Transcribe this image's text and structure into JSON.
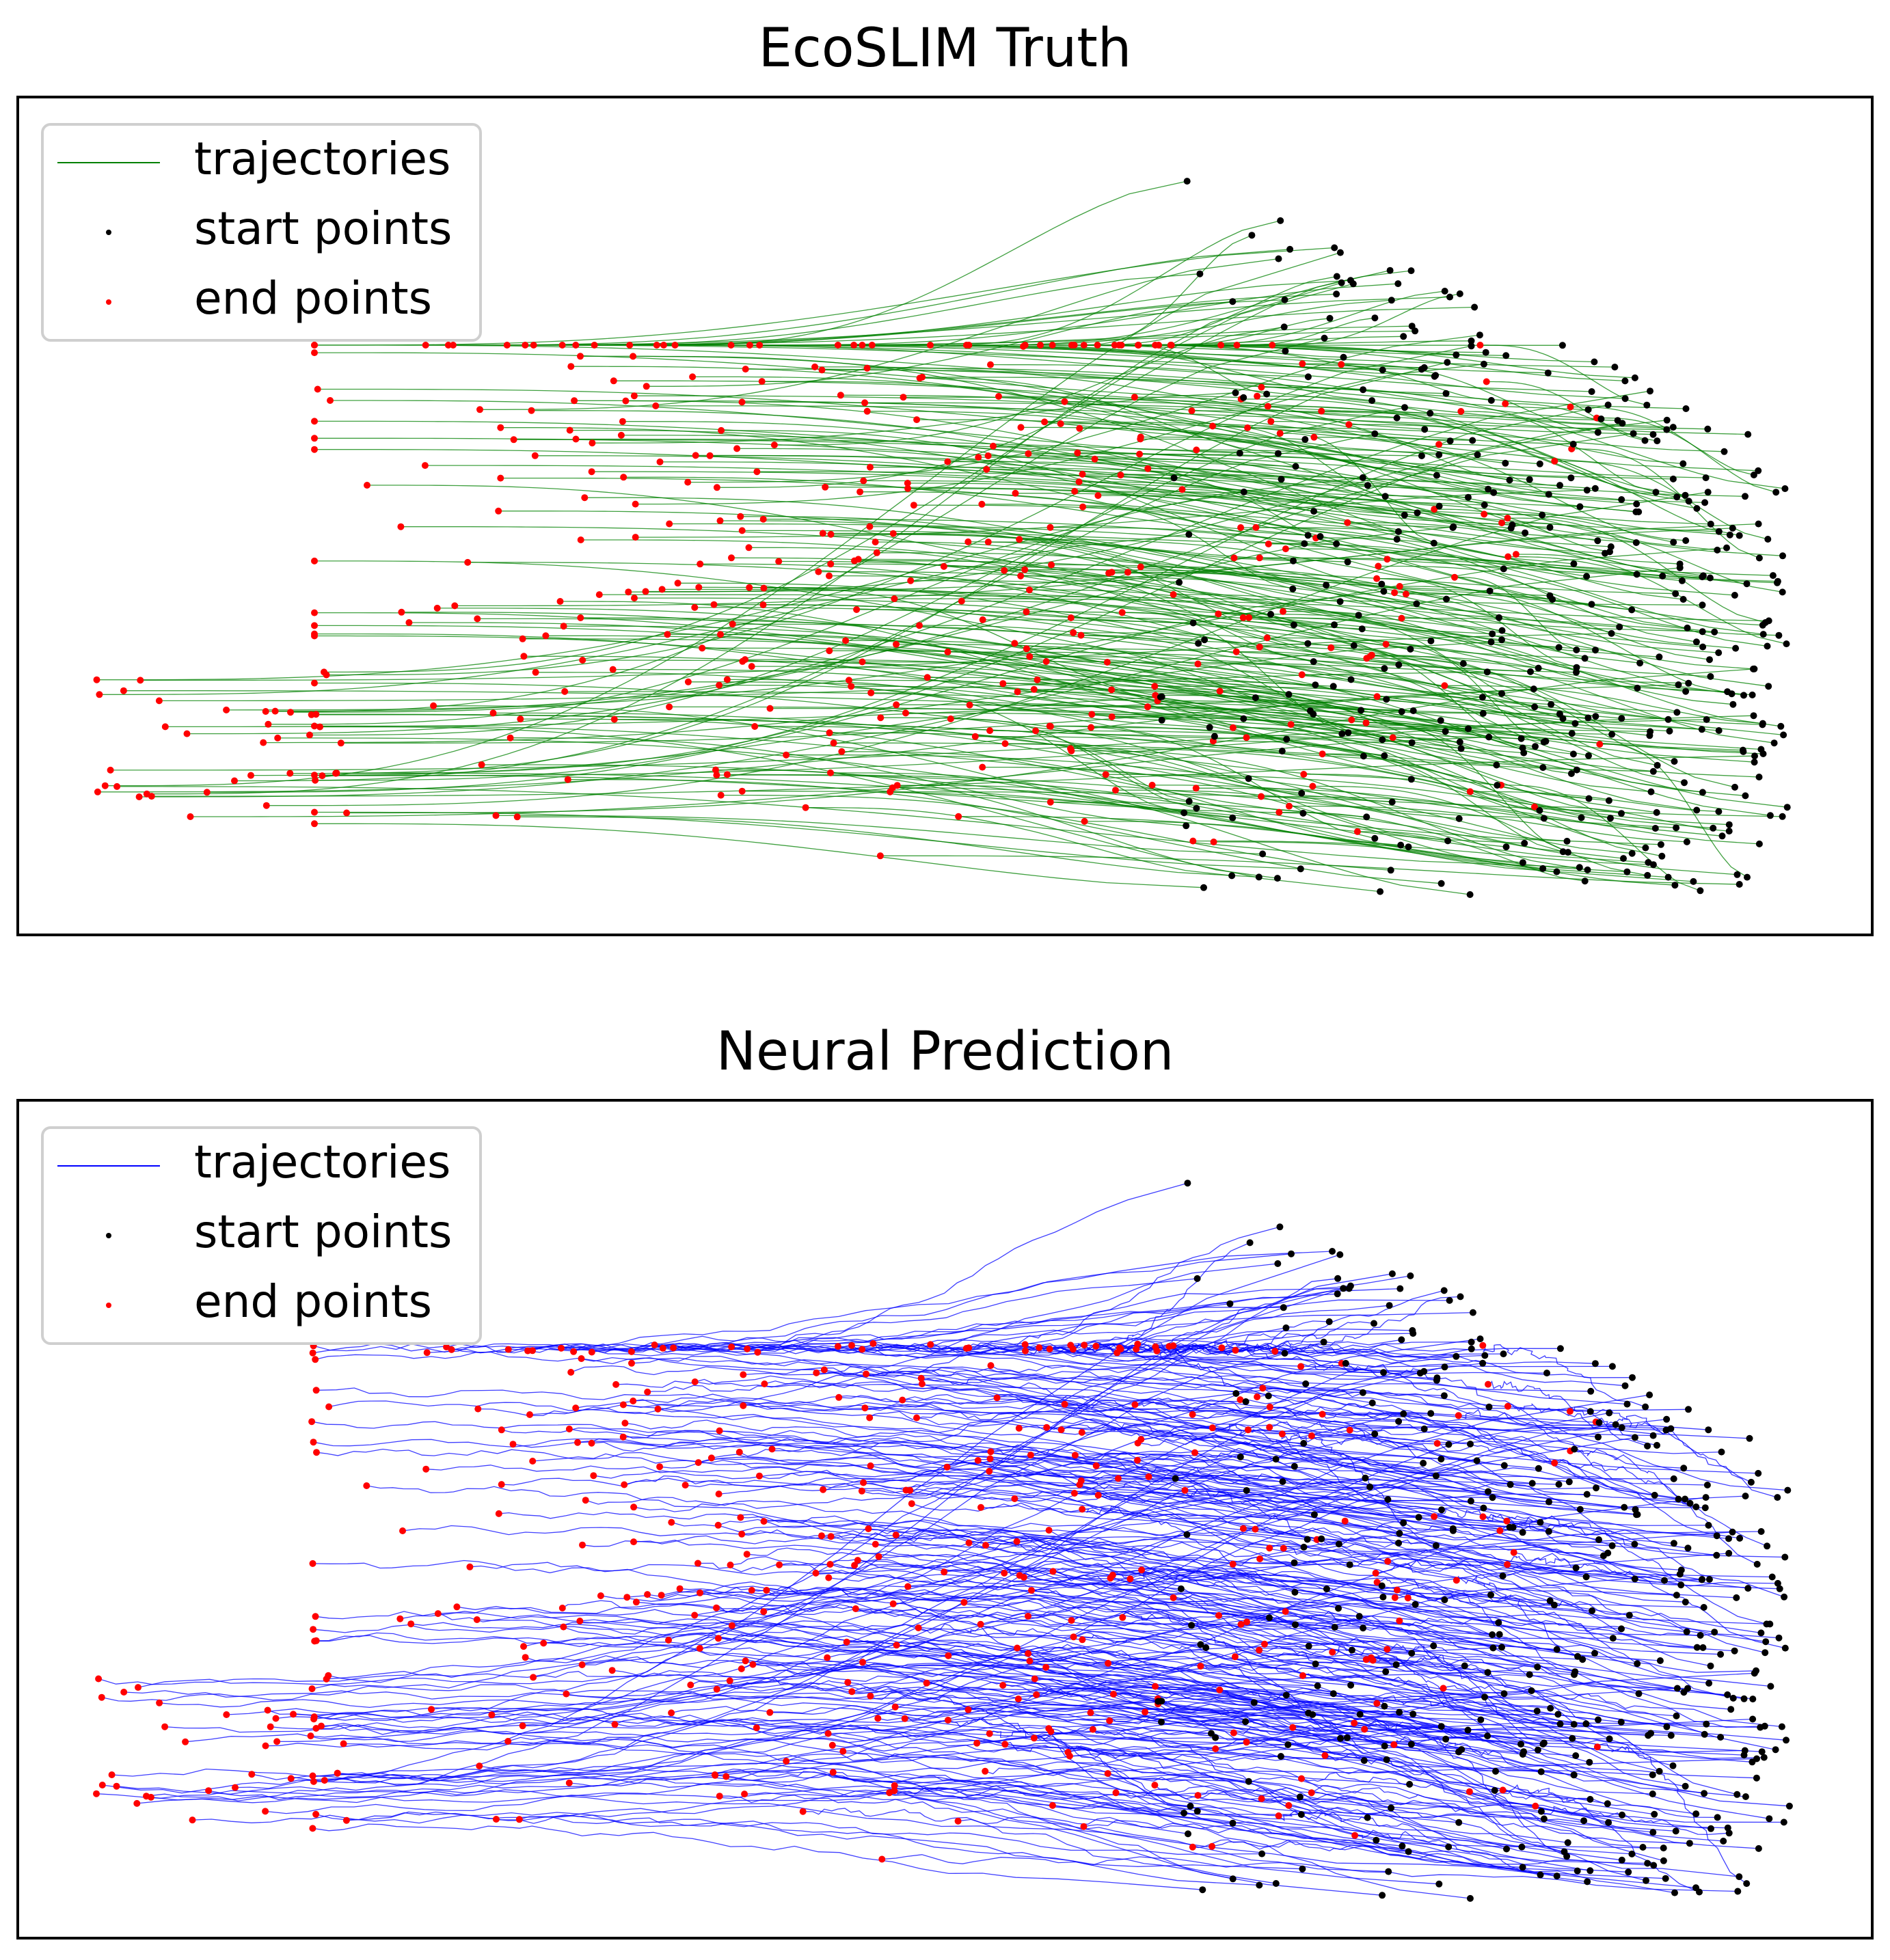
{
  "chart_data": [
    {
      "type": "scatter",
      "title": "EcoSLIM Truth",
      "xlabel": "",
      "ylabel": "",
      "axes": "hidden",
      "grid": false,
      "legend_position": "top-left",
      "trajectory_color": "#008000",
      "start_color": "#000000",
      "end_color": "#ff0000",
      "series": [
        {
          "name": "trajectories",
          "kind": "line",
          "color": "#008000"
        },
        {
          "name": "start points",
          "kind": "marker",
          "color": "#000000"
        },
        {
          "name": "end points",
          "kind": "marker",
          "color": "#ff0000"
        }
      ],
      "noise": 0
    },
    {
      "type": "scatter",
      "title": "Neural Prediction",
      "xlabel": "",
      "ylabel": "",
      "axes": "hidden",
      "grid": false,
      "legend_position": "top-left",
      "trajectory_color": "#0000ff",
      "start_color": "#000000",
      "end_color": "#ff0000",
      "series": [
        {
          "name": "trajectories",
          "kind": "line",
          "color": "#0000ff"
        },
        {
          "name": "start points",
          "kind": "marker",
          "color": "#000000"
        },
        {
          "name": "end points",
          "kind": "marker",
          "color": "#ff0000"
        }
      ],
      "noise": 1
    }
  ]
}
